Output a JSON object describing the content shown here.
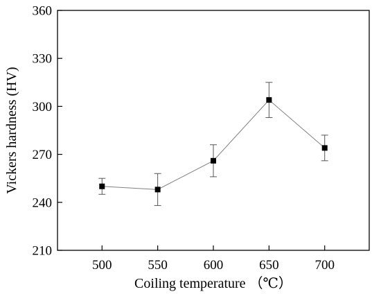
{
  "chart_data": {
    "type": "line",
    "title": "",
    "xlabel": "Coiling temperature （℃）",
    "ylabel": "Vickers hardness (HV)",
    "xlim": [
      460,
      740
    ],
    "ylim": [
      210,
      360
    ],
    "xticks": [
      500,
      550,
      600,
      650,
      700
    ],
    "yticks": [
      210,
      240,
      270,
      300,
      330,
      360
    ],
    "grid": false,
    "legend": "none",
    "marker": "square",
    "error_bars": true,
    "series": [
      {
        "x": [
          500,
          550,
          600,
          650,
          700
        ],
        "y": [
          250,
          248,
          266,
          304,
          274
        ],
        "err_low": [
          5,
          10,
          10,
          11,
          8
        ],
        "err_high": [
          5,
          10,
          10,
          11,
          8
        ]
      }
    ],
    "colors": {
      "marker": "#000000",
      "line": "#7f7f7f",
      "axis": "#000000"
    }
  }
}
